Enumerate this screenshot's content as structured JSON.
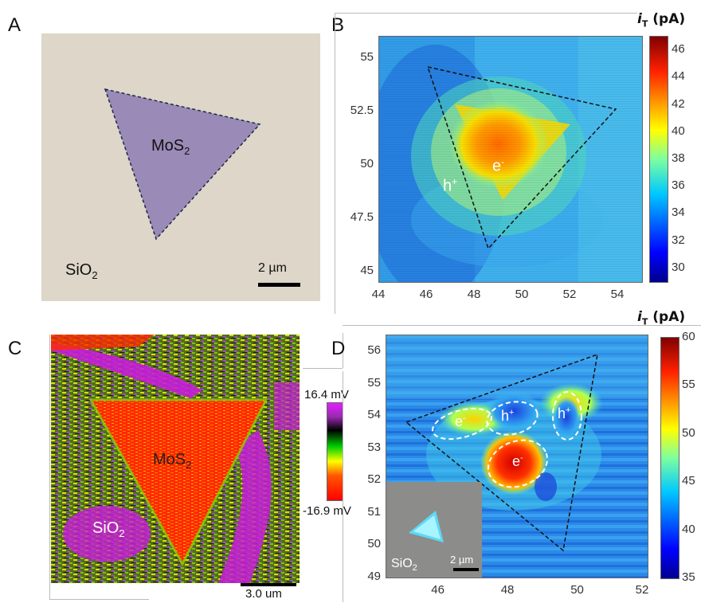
{
  "panels": {
    "a": {
      "label": "A",
      "flake_label": "MoS",
      "flake_sub": "2",
      "substrate_label": "SiO",
      "substrate_sub": "2",
      "scalebar": "2 µm"
    },
    "b": {
      "label": "B",
      "cb_title_main": "i",
      "cb_title_sub": "T",
      "cb_title_unit": " (pA)",
      "electron_label": "e",
      "electron_sup": "-",
      "hole_label": "h",
      "hole_sup": "+"
    },
    "c": {
      "label": "C",
      "flake_label": "MoS",
      "flake_sub": "2",
      "substrate_label": "SiO",
      "substrate_sub": "2",
      "cb_max": "16.4 mV",
      "cb_min": "-16.9 mV",
      "scalebar": "3.0 um"
    },
    "d": {
      "label": "D",
      "cb_title_main": "i",
      "cb_title_sub": "T",
      "cb_title_unit": " (pA)",
      "inset_substrate": "SiO",
      "inset_sub": "2",
      "inset_scalebar": "2 µm",
      "regions": [
        {
          "text": "e",
          "sup": "-"
        },
        {
          "text": "h",
          "sup": "+"
        },
        {
          "text": "h",
          "sup": "+"
        },
        {
          "text": "e",
          "sup": "-"
        }
      ]
    }
  },
  "chart_data": [
    {
      "type": "heatmap",
      "panel": "B",
      "title": "",
      "xlabel": "",
      "ylabel": "",
      "xlim": [
        44,
        55
      ],
      "ylim": [
        44.5,
        56
      ],
      "x_ticks": [
        "44",
        "46",
        "48",
        "50",
        "52",
        "54"
      ],
      "y_ticks": [
        "55",
        "52.5",
        "50",
        "47.5",
        "45"
      ],
      "colorbar_label": "iT (pA)",
      "colorbar_range": [
        29,
        47
      ],
      "colorbar_ticks": [
        "46",
        "44",
        "42",
        "40",
        "38",
        "36",
        "34",
        "32",
        "30"
      ],
      "annotations": [
        "e-",
        "h+"
      ]
    },
    {
      "type": "heatmap",
      "panel": "D",
      "title": "",
      "xlabel": "",
      "ylabel": "",
      "xlim": [
        44.5,
        52
      ],
      "ylim": [
        49,
        56.5
      ],
      "x_ticks": [
        "46",
        "48",
        "50",
        "52"
      ],
      "y_ticks": [
        "56",
        "55",
        "54",
        "53",
        "52",
        "51",
        "50",
        "49"
      ],
      "colorbar_label": "iT (pA)",
      "colorbar_range": [
        35,
        60
      ],
      "colorbar_ticks": [
        "60",
        "55",
        "50",
        "45",
        "40",
        "35"
      ],
      "annotations": [
        "e-",
        "h+",
        "h+",
        "e-"
      ]
    }
  ],
  "colors": {
    "optical_bg": "#ddd6c9",
    "flake": "#9a8ab7",
    "heat_low": "#0a1a8c",
    "heat_mid": "#2aa8e6",
    "heat_high": "#8b0000",
    "kpfm_red": "#ff2a00",
    "kpfm_magenta": "#c71dd9"
  }
}
